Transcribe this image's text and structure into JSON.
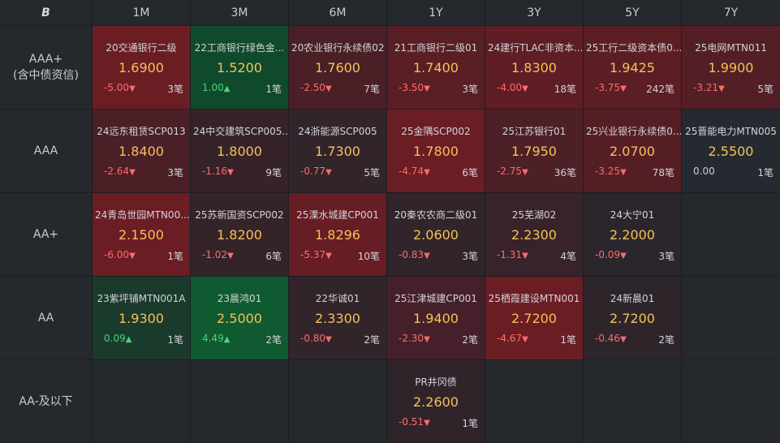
{
  "corner_logo": "B",
  "columns": [
    "1M",
    "3M",
    "6M",
    "1Y",
    "3Y",
    "5Y",
    "7Y"
  ],
  "rows": [
    {
      "label": "AAA+\n(含中债资信)",
      "cells": [
        {
          "name": "20交通银行二级",
          "yield": "1.6900",
          "change": "-5.00",
          "dir": "down",
          "count": "3笔",
          "shade": "#6b1d24"
        },
        {
          "name": "22工商银行绿色金...",
          "yield": "1.5200",
          "change": "1.00",
          "dir": "up",
          "count": "1笔",
          "shade": "#0f4a2c"
        },
        {
          "name": "20农业银行永续债02",
          "yield": "1.7600",
          "change": "-2.50",
          "dir": "down",
          "count": "7笔",
          "shade": "#4a1f26"
        },
        {
          "name": "21工商银行二级01",
          "yield": "1.7400",
          "change": "-3.50",
          "dir": "down",
          "count": "3笔",
          "shade": "#5a1e25"
        },
        {
          "name": "24建行TLAC非资本...",
          "yield": "1.8300",
          "change": "-4.00",
          "dir": "down",
          "count": "18笔",
          "shade": "#5f1d25"
        },
        {
          "name": "25工行二级资本债0...",
          "yield": "1.9425",
          "change": "-3.75",
          "dir": "down",
          "count": "242笔",
          "shade": "#5c1e25"
        },
        {
          "name": "25电网MTN011",
          "yield": "1.9900",
          "change": "-3.21",
          "dir": "down",
          "count": "5笔",
          "shade": "#531e25"
        }
      ]
    },
    {
      "label": "AAA",
      "cells": [
        {
          "name": "24远东租赁SCP013",
          "yield": "1.8400",
          "change": "-2.64",
          "dir": "down",
          "count": "3笔",
          "shade": "#4a1f26"
        },
        {
          "name": "24中交建筑SCP005...",
          "yield": "1.8000",
          "change": "-1.16",
          "dir": "down",
          "count": "9笔",
          "shade": "#36232a"
        },
        {
          "name": "24浙能源SCP005",
          "yield": "1.7300",
          "change": "-0.77",
          "dir": "down",
          "count": "5笔",
          "shade": "#31242a"
        },
        {
          "name": "25金隅SCP002",
          "yield": "1.7800",
          "change": "-4.74",
          "dir": "down",
          "count": "6笔",
          "shade": "#6b1d24"
        },
        {
          "name": "25江苏银行01",
          "yield": "1.7950",
          "change": "-2.75",
          "dir": "down",
          "count": "36笔",
          "shade": "#4d1f26"
        },
        {
          "name": "25兴业银行永续债0...",
          "yield": "2.0700",
          "change": "-3.25",
          "dir": "down",
          "count": "78笔",
          "shade": "#551e25"
        },
        {
          "name": "25晋能电力MTN005",
          "yield": "2.5500",
          "change": "0.00",
          "dir": "flat",
          "count": "1笔",
          "shade": "#252a31"
        }
      ]
    },
    {
      "label": "AA+",
      "cells": [
        {
          "name": "24青岛世园MTN00...",
          "yield": "2.1500",
          "change": "-6.00",
          "dir": "down",
          "count": "1笔",
          "shade": "#6b1d24"
        },
        {
          "name": "25苏新国资SCP002",
          "yield": "1.8200",
          "change": "-1.02",
          "dir": "down",
          "count": "6笔",
          "shade": "#35232a"
        },
        {
          "name": "25溧水城建CP001",
          "yield": "1.8296",
          "change": "-5.37",
          "dir": "down",
          "count": "10笔",
          "shade": "#661d24"
        },
        {
          "name": "20秦农农商二级01",
          "yield": "2.0600",
          "change": "-0.83",
          "dir": "down",
          "count": "3笔",
          "shade": "#31242a"
        },
        {
          "name": "25芜湖02",
          "yield": "2.2300",
          "change": "-1.31",
          "dir": "down",
          "count": "4笔",
          "shade": "#38232a"
        },
        {
          "name": "24大宁01",
          "yield": "2.2000",
          "change": "-0.09",
          "dir": "down",
          "count": "3笔",
          "shade": "#2a262c"
        },
        null
      ]
    },
    {
      "label": "AA",
      "cells": [
        {
          "name": "23紫坪铺MTN001A",
          "yield": "1.9300",
          "change": "0.09",
          "dir": "up",
          "count": "1笔",
          "shade": "#1a3a2c"
        },
        {
          "name": "23晨鸿01",
          "yield": "2.5000",
          "change": "4.49",
          "dir": "up",
          "count": "2笔",
          "shade": "#0f5a30"
        },
        {
          "name": "22华诚01",
          "yield": "2.3300",
          "change": "-0.80",
          "dir": "down",
          "count": "2笔",
          "shade": "#31242a"
        },
        {
          "name": "25江津城建CP001",
          "yield": "1.9400",
          "change": "-2.30",
          "dir": "down",
          "count": "2笔",
          "shade": "#45202a"
        },
        {
          "name": "25栖霞建设MTN001",
          "yield": "2.7200",
          "change": "-4.67",
          "dir": "down",
          "count": "1笔",
          "shade": "#6b1d24"
        },
        {
          "name": "24新晨01",
          "yield": "2.7200",
          "change": "-0.46",
          "dir": "down",
          "count": "2笔",
          "shade": "#2e252b"
        },
        null
      ]
    },
    {
      "label": "AA-及以下",
      "cells": [
        null,
        null,
        null,
        {
          "name": "PR井冈债",
          "yield": "2.2600",
          "change": "-0.51",
          "dir": "down",
          "count": "1笔",
          "shade": "#30242b"
        },
        null,
        null,
        null
      ]
    }
  ]
}
